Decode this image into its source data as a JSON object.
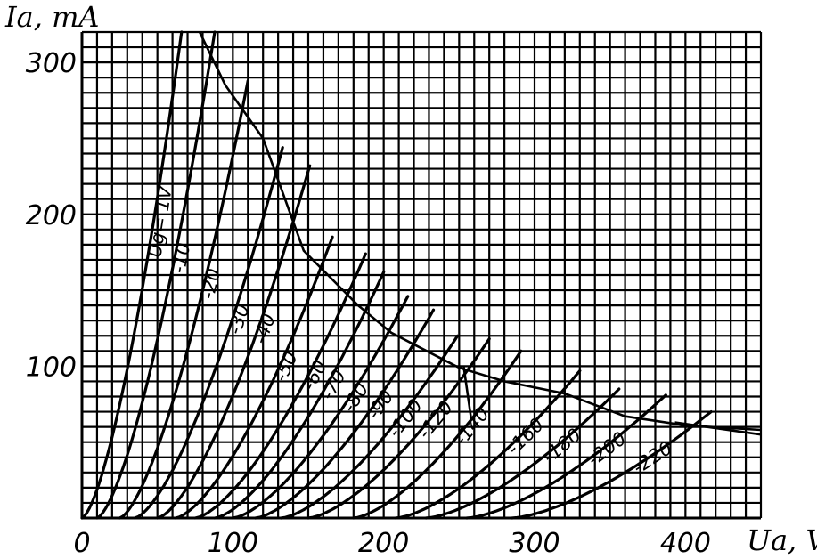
{
  "chart_data": {
    "type": "line",
    "title": "",
    "xlabel": "U_a, V",
    "ylabel": "I_a, mA",
    "xlabel_text": "Ua, V",
    "ylabel_text": "Ia, mA",
    "xlim": [
      0,
      450
    ],
    "ylim": [
      0,
      320
    ],
    "grid": true,
    "x_ticks": [
      {
        "value": 0,
        "label": "0"
      },
      {
        "value": 100,
        "label": "100"
      },
      {
        "value": 200,
        "label": "200"
      },
      {
        "value": 300,
        "label": "300"
      },
      {
        "value": 400,
        "label": "400"
      }
    ],
    "y_ticks": [
      {
        "value": 100,
        "label": "100"
      },
      {
        "value": 200,
        "label": "200"
      },
      {
        "value": 300,
        "label": "300"
      }
    ],
    "series": [
      {
        "name": "Ug= 1V",
        "x0": 0,
        "xend": 66,
        "yend": 320
      },
      {
        "name": "-10",
        "x0": 10,
        "xend": 88,
        "yend": 320
      },
      {
        "name": "-20",
        "x0": 25,
        "xend": 110,
        "yend": 288
      },
      {
        "name": "-30",
        "x0": 35,
        "xend": 133,
        "yend": 244
      },
      {
        "name": "-40",
        "x0": 50,
        "xend": 151,
        "yend": 232
      },
      {
        "name": "-50",
        "x0": 62,
        "xend": 166,
        "yend": 185
      },
      {
        "name": "-60",
        "x0": 75,
        "xend": 188,
        "yend": 174
      },
      {
        "name": "-70",
        "x0": 88,
        "xend": 200,
        "yend": 162
      },
      {
        "name": "-80",
        "x0": 100,
        "xend": 216,
        "yend": 146
      },
      {
        "name": "-90",
        "x0": 115,
        "xend": 233,
        "yend": 137
      },
      {
        "name": "-100",
        "x0": 132,
        "xend": 249,
        "yend": 120
      },
      {
        "name": "-120",
        "x0": 150,
        "xend": 270,
        "yend": 118
      },
      {
        "name": "-140",
        "x0": 180,
        "xend": 291,
        "yend": 110
      },
      {
        "name": "-160",
        "x0": 208,
        "xend": 330,
        "yend": 97
      },
      {
        "name": "-180",
        "x0": 228,
        "xend": 356,
        "yend": 85
      },
      {
        "name": "-200",
        "x0": 255,
        "xend": 387,
        "yend": 81
      },
      {
        "name": "-220",
        "x0": 285,
        "xend": 417,
        "yend": 70
      }
    ],
    "limit_curve": [
      {
        "x": 78,
        "y": 320
      },
      {
        "x": 95,
        "y": 285
      },
      {
        "x": 120,
        "y": 250
      },
      {
        "x": 147,
        "y": 176
      },
      {
        "x": 183,
        "y": 140
      },
      {
        "x": 205,
        "y": 122
      },
      {
        "x": 250,
        "y": 99
      },
      {
        "x": 280,
        "y": 90
      },
      {
        "x": 320,
        "y": 82
      },
      {
        "x": 360,
        "y": 67
      },
      {
        "x": 400,
        "y": 61
      },
      {
        "x": 450,
        "y": 58
      }
    ],
    "extra_lines": [
      {
        "points": [
          {
            "x": 253,
            "y": 100
          },
          {
            "x": 258,
            "y": 65
          }
        ]
      },
      {
        "points": [
          {
            "x": 393,
            "y": 63
          },
          {
            "x": 450,
            "y": 55
          }
        ]
      }
    ]
  }
}
